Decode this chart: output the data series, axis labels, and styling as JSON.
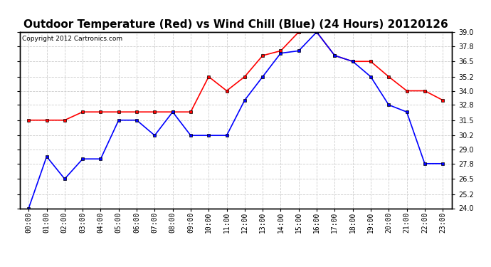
{
  "title": "Outdoor Temperature (Red) vs Wind Chill (Blue) (24 Hours) 20120126",
  "copyright_text": "Copyright 2012 Cartronics.com",
  "x_labels": [
    "00:00",
    "01:00",
    "02:00",
    "03:00",
    "04:00",
    "05:00",
    "06:00",
    "07:00",
    "08:00",
    "09:00",
    "10:00",
    "11:00",
    "12:00",
    "13:00",
    "14:00",
    "15:00",
    "16:00",
    "17:00",
    "18:00",
    "19:00",
    "20:00",
    "21:00",
    "22:00",
    "23:00"
  ],
  "red_data": [
    31.5,
    31.5,
    31.5,
    32.2,
    32.2,
    32.2,
    32.2,
    32.2,
    32.2,
    32.2,
    35.2,
    34.0,
    35.2,
    37.0,
    37.4,
    39.0,
    39.0,
    37.0,
    36.5,
    36.5,
    35.2,
    34.0,
    34.0,
    33.2
  ],
  "blue_data": [
    24.0,
    28.4,
    26.5,
    28.2,
    28.2,
    31.5,
    31.5,
    30.2,
    32.2,
    30.2,
    30.2,
    30.2,
    33.2,
    35.2,
    37.2,
    37.4,
    39.0,
    37.0,
    36.5,
    35.2,
    32.8,
    32.2,
    27.8,
    27.8
  ],
  "red_color": "#ff0000",
  "blue_color": "#0000ff",
  "marker": "s",
  "marker_size": 3,
  "marker_edge_color": "#000000",
  "marker_edge_width": 0.5,
  "line_width": 1.2,
  "ylim": [
    24.0,
    39.0
  ],
  "yticks": [
    24.0,
    25.2,
    26.5,
    27.8,
    29.0,
    30.2,
    31.5,
    32.8,
    34.0,
    35.2,
    36.5,
    37.8,
    39.0
  ],
  "background_color": "#ffffff",
  "plot_bg_color": "#ffffff",
  "grid_color": "#cccccc",
  "title_fontsize": 11,
  "tick_fontsize": 7,
  "copyright_fontsize": 6.5,
  "fig_width": 6.9,
  "fig_height": 3.75,
  "dpi": 100
}
